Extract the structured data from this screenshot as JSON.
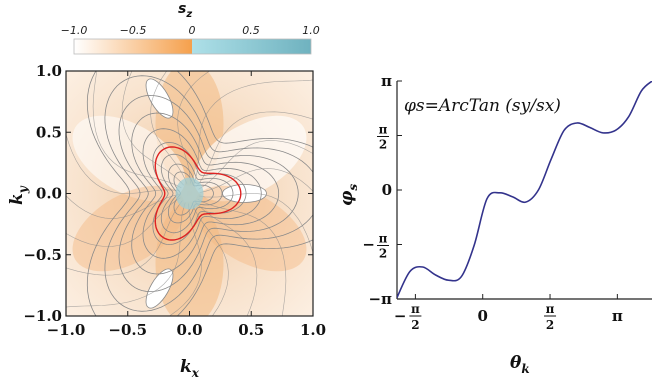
{
  "colorbar": {
    "title": "s",
    "title_sub": "z",
    "ticks": [
      "−1.0",
      "−0.5",
      "0",
      "0.5",
      "1.0"
    ],
    "colors": {
      "negative": "#f5a04c",
      "positive": "#7fc9cf",
      "neutral": "#ffffff"
    }
  },
  "chart_data": [
    {
      "type": "heatmap",
      "title": "",
      "xlabel": "k",
      "xlabel_sub": "x",
      "ylabel": "k",
      "ylabel_sub": "y",
      "xlim": [
        -1.0,
        1.0
      ],
      "ylim": [
        -1.0,
        1.0
      ],
      "x_ticks": [
        -1.0,
        -0.5,
        0.0,
        0.5,
        1.0
      ],
      "y_ticks": [
        -1.0,
        -0.5,
        0.0,
        0.5,
        1.0
      ],
      "x_tick_labels": [
        "−1.0",
        "−0.5",
        "0.0",
        "0.5",
        "1.0"
      ],
      "y_tick_labels": [
        "−1.0",
        "−0.5",
        "0.0",
        "0.5",
        "1.0"
      ],
      "colorbar_range": [
        -1.0,
        1.0
      ],
      "highlight_contour_value": 0.0,
      "colors": {
        "contour": "#8a8a8a",
        "highlight": "#dd2222"
      }
    },
    {
      "type": "line",
      "title": "",
      "annotation": "φs=ArcTan (sy/sx)",
      "xlabel": "θ",
      "xlabel_sub": "k",
      "ylabel": "φ",
      "ylabel_sub": "s",
      "xlim": [
        -2.0,
        3.95
      ],
      "ylim": [
        -3.1416,
        3.1416
      ],
      "x_tick_labels": [
        "−π/2",
        "0",
        "π/2",
        "π"
      ],
      "y_tick_labels": [
        "−π",
        "−π/2",
        "0",
        "π/2",
        "π"
      ],
      "x": [
        -2.0,
        -1.7,
        -1.4,
        -1.1,
        -0.8,
        -0.5,
        -0.2,
        0.1,
        0.4,
        0.7,
        1.0,
        1.3,
        1.6,
        1.9,
        2.2,
        2.5,
        2.8,
        3.1,
        3.4,
        3.7,
        3.95
      ],
      "y": [
        -3.1,
        -2.35,
        -2.22,
        -2.45,
        -2.6,
        -2.5,
        -1.6,
        -0.25,
        -0.08,
        -0.2,
        -0.35,
        0.0,
        0.9,
        1.72,
        1.93,
        1.8,
        1.65,
        1.72,
        2.1,
        2.85,
        3.14
      ],
      "colors": {
        "line": "#33338c"
      }
    }
  ]
}
